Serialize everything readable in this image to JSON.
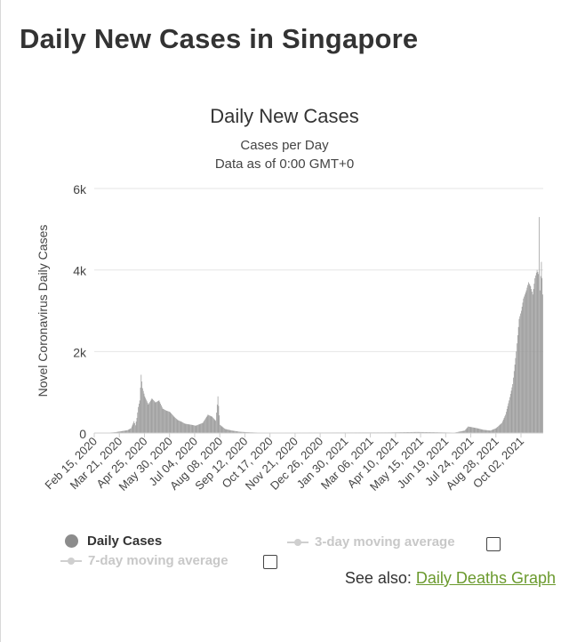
{
  "page": {
    "heading": "Daily New Cases in Singapore"
  },
  "chart": {
    "title": "Daily New Cases",
    "subtitle_line1": "Cases per Day",
    "subtitle_line2": "Data as of 0:00 GMT+0",
    "ylabel": "Novel Coronavirus Daily Cases"
  },
  "legend": {
    "daily": "Daily Cases",
    "ma3": "3-day moving average",
    "ma7": "7-day moving average"
  },
  "see_also": {
    "prefix": "See also:",
    "link": "Daily Deaths Graph"
  },
  "colors": {
    "bars": "#9a9a9a",
    "grid": "#e6e6e6",
    "link": "#6b9a2e"
  },
  "chart_data": {
    "type": "bar",
    "title": "Daily New Cases",
    "subtitle": [
      "Cases per Day",
      "Data as of 0:00 GMT+0"
    ],
    "ylabel": "Novel Coronavirus Daily Cases",
    "xlabel": "",
    "ylim": [
      0,
      6000
    ],
    "yticks": [
      0,
      2000,
      4000,
      6000
    ],
    "ytick_labels": [
      "0",
      "2k",
      "4k",
      "6k"
    ],
    "x_start": "2020-02-15",
    "xticks": [
      "Feb 15, 2020",
      "Mar 21, 2020",
      "Apr 25, 2020",
      "May 30, 2020",
      "Jul 04, 2020",
      "Aug 08, 2020",
      "Sep 12, 2020",
      "Oct 17, 2020",
      "Nov 21, 2020",
      "Dec 26, 2020",
      "Jan 30, 2021",
      "Mar 06, 2021",
      "Apr 10, 2021",
      "May 15, 2021",
      "Jun 19, 2021",
      "Jul 24, 2021",
      "Aug 28, 2021",
      "Oct 02, 2021"
    ],
    "grid": true,
    "legend_position": "bottom",
    "series": [
      {
        "name": "Daily Cases",
        "keypoints": [
          [
            "2020-02-15",
            2
          ],
          [
            "2020-03-05",
            8
          ],
          [
            "2020-03-15",
            20
          ],
          [
            "2020-03-25",
            50
          ],
          [
            "2020-04-01",
            70
          ],
          [
            "2020-04-06",
            120
          ],
          [
            "2020-04-10",
            290
          ],
          [
            "2020-04-12",
            190
          ],
          [
            "2020-04-14",
            370
          ],
          [
            "2020-04-16",
            640
          ],
          [
            "2020-04-18",
            800
          ],
          [
            "2020-04-20",
            1430
          ],
          [
            "2020-04-22",
            1100
          ],
          [
            "2020-04-25",
            900
          ],
          [
            "2020-04-30",
            700
          ],
          [
            "2020-05-05",
            850
          ],
          [
            "2020-05-10",
            750
          ],
          [
            "2020-05-15",
            800
          ],
          [
            "2020-05-20",
            600
          ],
          [
            "2020-05-25",
            550
          ],
          [
            "2020-05-30",
            520
          ],
          [
            "2020-06-05",
            400
          ],
          [
            "2020-06-10",
            320
          ],
          [
            "2020-06-15",
            280
          ],
          [
            "2020-06-20",
            230
          ],
          [
            "2020-06-30",
            200
          ],
          [
            "2020-07-05",
            180
          ],
          [
            "2020-07-15",
            250
          ],
          [
            "2020-07-22",
            450
          ],
          [
            "2020-07-28",
            400
          ],
          [
            "2020-08-02",
            300
          ],
          [
            "2020-08-05",
            900
          ],
          [
            "2020-08-08",
            200
          ],
          [
            "2020-08-15",
            100
          ],
          [
            "2020-08-25",
            60
          ],
          [
            "2020-09-05",
            30
          ],
          [
            "2020-09-15",
            20
          ],
          [
            "2020-10-01",
            10
          ],
          [
            "2021-04-01",
            15
          ],
          [
            "2021-05-10",
            25
          ],
          [
            "2021-06-01",
            20
          ],
          [
            "2021-07-01",
            10
          ],
          [
            "2021-07-15",
            60
          ],
          [
            "2021-07-20",
            160
          ],
          [
            "2021-08-01",
            120
          ],
          [
            "2021-08-10",
            80
          ],
          [
            "2021-08-20",
            60
          ],
          [
            "2021-08-28",
            120
          ],
          [
            "2021-09-05",
            250
          ],
          [
            "2021-09-10",
            450
          ],
          [
            "2021-09-15",
            800
          ],
          [
            "2021-09-20",
            1200
          ],
          [
            "2021-09-25",
            2000
          ],
          [
            "2021-09-29",
            2800
          ],
          [
            "2021-10-02",
            3000
          ],
          [
            "2021-10-05",
            3300
          ],
          [
            "2021-10-09",
            3500
          ],
          [
            "2021-10-12",
            3700
          ],
          [
            "2021-10-15",
            3600
          ],
          [
            "2021-10-18",
            3400
          ],
          [
            "2021-10-21",
            3800
          ],
          [
            "2021-10-24",
            4000
          ],
          [
            "2021-10-26",
            3900
          ],
          [
            "2021-10-27",
            5300
          ],
          [
            "2021-10-28",
            3500
          ],
          [
            "2021-10-30",
            4200
          ],
          [
            "2021-11-01",
            3400
          ]
        ]
      }
    ]
  }
}
